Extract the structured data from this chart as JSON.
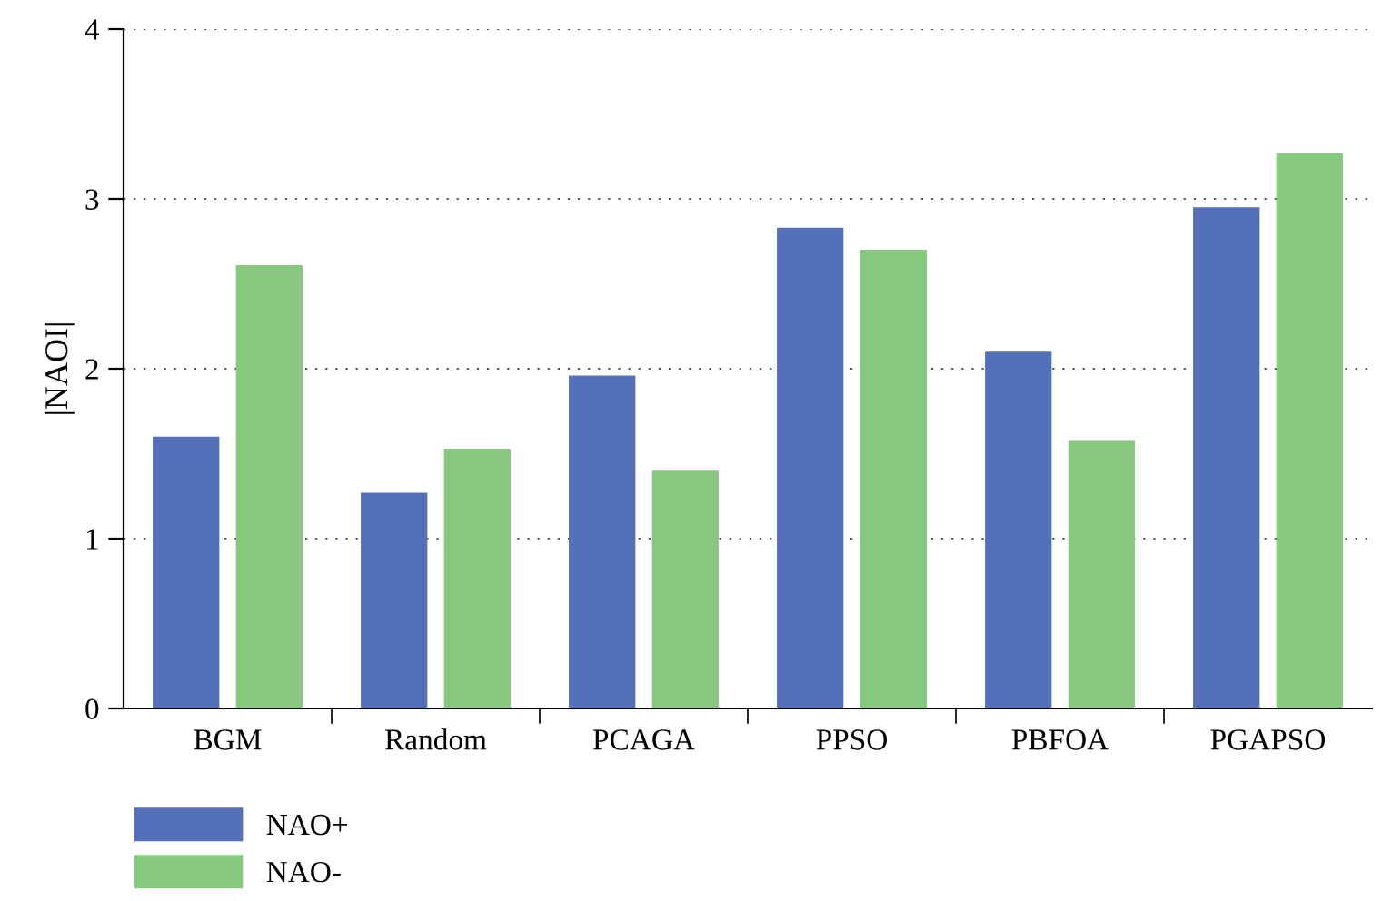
{
  "chart_data": {
    "type": "bar",
    "ylabel": "|NAOI|",
    "categories": [
      "BGM",
      "Random",
      "PCAGA",
      "PPSO",
      "PBFOA",
      "PGAPSO"
    ],
    "series": [
      {
        "name": "NAO+",
        "color": "#5470b8",
        "values": [
          1.6,
          1.27,
          1.96,
          2.83,
          2.1,
          2.95
        ]
      },
      {
        "name": "NAO-",
        "color": "#85c87e",
        "values": [
          2.61,
          1.53,
          1.4,
          2.7,
          1.58,
          3.27
        ]
      }
    ],
    "ylim": [
      0,
      4
    ],
    "yticks": [
      0,
      1,
      2,
      3,
      4
    ],
    "grid": "y",
    "legend": "bottom"
  }
}
